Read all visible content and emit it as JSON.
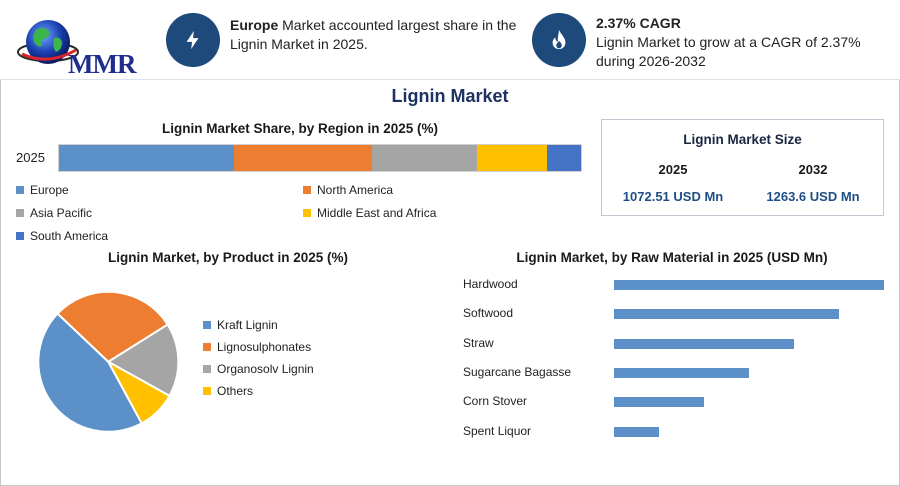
{
  "header": {
    "logo_text": "MMR",
    "info_left": {
      "bold": "Europe",
      "text": " Market accounted largest share in the Lignin Market in 2025.",
      "icon": "lightning-icon"
    },
    "info_right": {
      "bold": "2.37% CAGR",
      "text": "Lignin Market to grow at a CAGR of 2.37% during 2026-2032",
      "icon": "flame-icon"
    }
  },
  "title": "Lignin Market",
  "market_size": {
    "title": "Lignin Market Size",
    "year_a": "2025",
    "year_b": "2032",
    "value_a": "1072.51 USD Mn",
    "value_b": "1263.6 USD Mn"
  },
  "colors": {
    "blue": "#5b91c8",
    "orange": "#ed7d31",
    "gray": "#a5a5a5",
    "yellow": "#ffc000",
    "darkblue": "#4472c4",
    "accent": "#1d4a7b"
  },
  "chart_data": [
    {
      "type": "bar",
      "stacked": true,
      "orientation": "horizontal",
      "title": "Lignin Market Share, by Region in 2025 (%)",
      "categories": [
        "2025"
      ],
      "series": [
        {
          "name": "Europe",
          "values": [
            33.5
          ],
          "color": "#5b91c8"
        },
        {
          "name": "North America",
          "values": [
            26.5
          ],
          "color": "#ed7d31"
        },
        {
          "name": "Asia Pacific",
          "values": [
            20
          ],
          "color": "#a5a5a5"
        },
        {
          "name": "Middle East and Africa",
          "values": [
            13.5
          ],
          "color": "#ffc000"
        },
        {
          "name": "South America",
          "values": [
            6.5
          ],
          "color": "#4472c4"
        }
      ],
      "legend": "bottom"
    },
    {
      "type": "pie",
      "title": "Lignin Market, by Product in 2025 (%)",
      "categories": [
        "Kraft Lignin",
        "Lignosulphonates",
        "Organosolv Lignin",
        "Others"
      ],
      "values": [
        45,
        29,
        17,
        9
      ],
      "colors": [
        "#5b91c8",
        "#ed7d31",
        "#a5a5a5",
        "#ffc000"
      ],
      "legend": "right"
    },
    {
      "type": "bar",
      "orientation": "horizontal",
      "title": "Lignin Market, by Raw Material in 2025 (USD Mn)",
      "categories": [
        "Hardwood",
        "Softwood",
        "Straw",
        "Sugarcane Bagasse",
        "Corn Stover",
        "Spent Liquor"
      ],
      "values": [
        270,
        225,
        180,
        135,
        90,
        45
      ],
      "xlim": [
        0,
        270
      ],
      "grid": false,
      "color": "#5b91c8"
    }
  ]
}
